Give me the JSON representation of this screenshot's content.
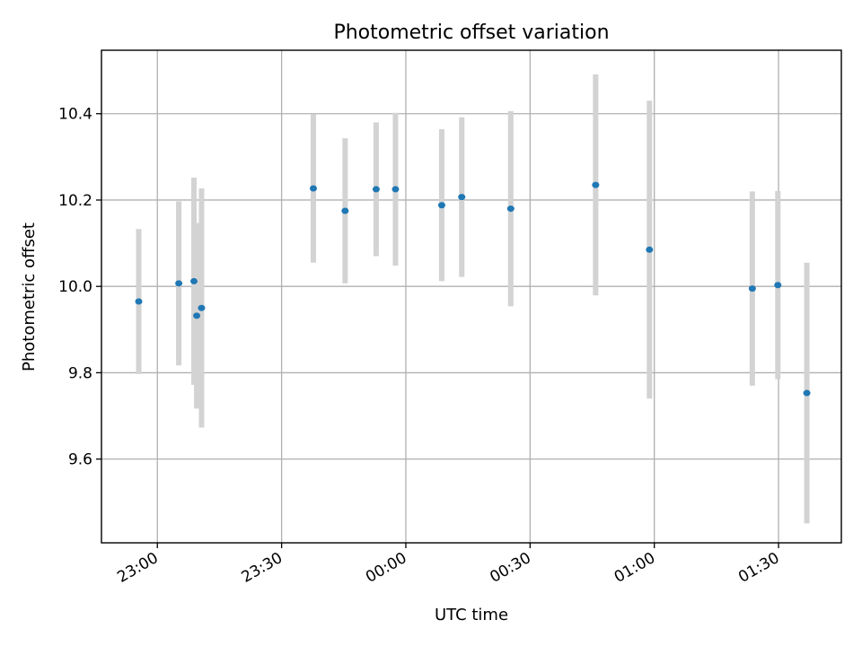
{
  "chart_data": {
    "type": "scatter",
    "title": "Photometric offset variation",
    "xlabel": "UTC time",
    "ylabel": "Photometric offset",
    "x_axis": {
      "kind": "time",
      "xlim": [
        "22:46:30",
        "01:45:10"
      ],
      "ticks": [
        "23:00",
        "23:30",
        "00:00",
        "00:30",
        "01:00",
        "01:30"
      ]
    },
    "y_axis": {
      "ylim": [
        9.406,
        10.547
      ],
      "ticks": [
        9.6,
        9.8,
        10.0,
        10.2,
        10.4
      ],
      "tick_labels": [
        "9.6",
        "9.8",
        "10.0",
        "10.2",
        "10.4"
      ]
    },
    "grid": true,
    "error_bar_color": "#d3d3d3",
    "marker_color": "#1f77b4",
    "points": [
      {
        "t": "22:55:30",
        "y": 9.965,
        "err": 0.168
      },
      {
        "t": "23:05:10",
        "y": 10.007,
        "err": 0.19
      },
      {
        "t": "23:08:50",
        "y": 10.012,
        "err": 0.24
      },
      {
        "t": "23:09:30",
        "y": 9.932,
        "err": 0.215
      },
      {
        "t": "23:10:40",
        "y": 9.95,
        "err": 0.277
      },
      {
        "t": "23:37:40",
        "y": 10.227,
        "err": 0.172
      },
      {
        "t": "23:45:20",
        "y": 10.175,
        "err": 0.168
      },
      {
        "t": "23:52:50",
        "y": 10.225,
        "err": 0.155
      },
      {
        "t": "23:57:30",
        "y": 10.225,
        "err": 0.177
      },
      {
        "t": "00:08:40",
        "y": 10.188,
        "err": 0.176
      },
      {
        "t": "00:13:30",
        "y": 10.207,
        "err": 0.185
      },
      {
        "t": "00:25:20",
        "y": 10.18,
        "err": 0.226
      },
      {
        "t": "00:45:50",
        "y": 10.235,
        "err": 0.256
      },
      {
        "t": "00:58:50",
        "y": 10.085,
        "err": 0.345
      },
      {
        "t": "01:23:40",
        "y": 9.995,
        "err": 0.225
      },
      {
        "t": "01:29:50",
        "y": 10.003,
        "err": 0.218
      },
      {
        "t": "01:36:50",
        "y": 9.753,
        "err": 0.302
      }
    ]
  }
}
